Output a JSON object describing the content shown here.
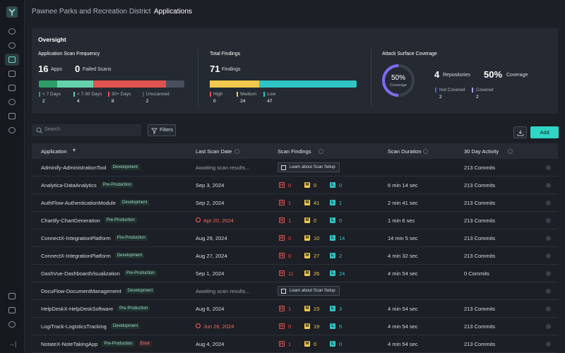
{
  "breadcrumb": {
    "org": "Pawnee Parks and Recreation District",
    "page": "Applications"
  },
  "oversight": {
    "title": "Oversight",
    "scan_frequency": {
      "title": "Application Scan Frequency",
      "apps": 16,
      "apps_label": "Apps",
      "failed": 0,
      "failed_label": "Failed Scans",
      "segments": [
        {
          "name": "< 7 Days",
          "value": 2,
          "color": "#2e9e68"
        },
        {
          "name": "< 7-30 Days",
          "value": 4,
          "color": "#66d2ad"
        },
        {
          "name": "30+ Days",
          "value": 8,
          "color": "#e0524f"
        },
        {
          "name": "Unscanned",
          "value": 2,
          "color": "#4a505b"
        }
      ]
    },
    "findings": {
      "title": "Total Findings",
      "total": 71,
      "total_label": "Findings",
      "segments": [
        {
          "name": "High",
          "value": 0,
          "color": "#e0524f"
        },
        {
          "name": "Medium",
          "value": 24,
          "color": "#f2c94c"
        },
        {
          "name": "Low",
          "value": 47,
          "color": "#2ec4c4"
        }
      ]
    },
    "coverage": {
      "title": "Attack Surface Coverage",
      "percent": {
        "value": 50,
        "label": "50%"
      },
      "ring_label": "Coverage",
      "repos": 4,
      "repos_label": "Repositories",
      "coverage_label": "Coverage",
      "segments": [
        {
          "name": "Not Covered",
          "value": 2,
          "color": "#5f52d8"
        },
        {
          "name": "Covered",
          "value": 2,
          "color": "#a79ff5"
        }
      ]
    }
  },
  "toolbar": {
    "search": "Search",
    "filters": "Filters",
    "add": "Add"
  },
  "table": {
    "columns": [
      "Application",
      "Last Scan Date",
      "Scan Findings",
      "Scan Duration",
      "30 Day Activity"
    ],
    "severity": [
      "H",
      "M",
      "L"
    ],
    "rows": [
      {
        "name": "Adminify-AdministrationTool",
        "tags": [
          "Development"
        ],
        "status": "Awaiting scan results...",
        "action": "Learn about Scan Setup",
        "activity": "213 Commits"
      },
      {
        "name": "Analytica-DataAnalytics",
        "tags": [
          "Pre-Production"
        ],
        "date": "Sep 3, 2024",
        "findings": [
          0,
          0,
          0
        ],
        "duration": "6 min 14 sec",
        "activity": "213 Commits"
      },
      {
        "name": "AuthFlow-AuthenticationModule",
        "tags": [
          "Development"
        ],
        "date": "Sep 2, 2024",
        "findings": [
          1,
          41,
          1
        ],
        "duration": "2 min 41 sec",
        "activity": "213 Commits"
      },
      {
        "name": "Chartify-ChartGeneration",
        "tags": [
          "Pre-Production"
        ],
        "date": "Apr 20, 2024",
        "overdue": true,
        "findings": [
          1,
          0,
          0
        ],
        "duration": "1 min 6 sec",
        "activity": "213 Commits"
      },
      {
        "name": "ConnectX-IntegrationPlatform",
        "tags": [
          "Pre-Production"
        ],
        "date": "Aug 29, 2024",
        "findings": [
          0,
          10,
          14
        ],
        "duration": "14 min 5 sec",
        "activity": "213 Commits"
      },
      {
        "name": "ConnectX-IntegrationPlatform",
        "tags": [
          "Development"
        ],
        "date": "Aug 27, 2024",
        "findings": [
          0,
          27,
          2
        ],
        "duration": "4 min 32 sec",
        "activity": "213 Commits"
      },
      {
        "name": "DashVue-DashboardVisualization",
        "tags": [
          "Pre-Production"
        ],
        "date": "Sep 1, 2024",
        "findings": [
          11,
          26,
          24
        ],
        "duration": "4 min 54 sec",
        "activity": "0 Commits"
      },
      {
        "name": "DocuFlow-DocumentManagement",
        "tags": [
          "Development"
        ],
        "status": "Awaiting scan results...",
        "action": "Learn about Scan Setup"
      },
      {
        "name": "HelpDeskX-HelpDeskSoftware",
        "tags": [
          "Pre-Production"
        ],
        "date": "Aug 6, 2024",
        "findings": [
          1,
          23,
          3
        ],
        "duration": "4 min 54 sec",
        "activity": "213 Commits"
      },
      {
        "name": "LogiTrack-LogisticsTracking",
        "tags": [
          "Development"
        ],
        "date": "Jun 26, 2024",
        "overdue": true,
        "findings": [
          0,
          19,
          5
        ],
        "duration": "4 min 54 sec",
        "activity": "213 Commits"
      },
      {
        "name": "NotateX-NoteTakingApp",
        "tags": [
          "Pre-Production",
          "Error"
        ],
        "date": "Aug 4, 2024",
        "findings": [
          1,
          0,
          0
        ],
        "duration": "4 min 54 sec",
        "activity": "213 Commits"
      }
    ]
  }
}
